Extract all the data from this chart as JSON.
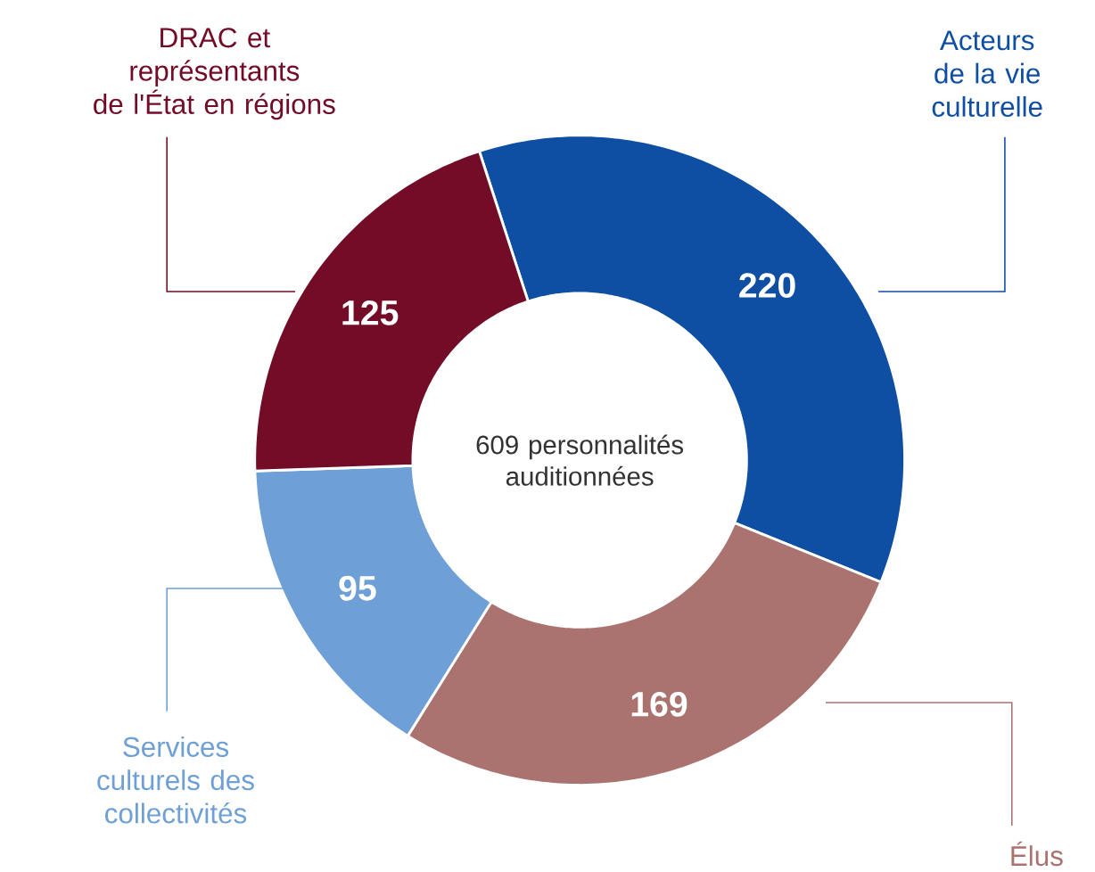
{
  "chart_data": {
    "type": "donut",
    "categories": [
      "Acteurs de la vie culturelle",
      "Élus",
      "Services culturels des collectivités",
      "DRAC et représentants de l'État en régions"
    ],
    "values": [
      220,
      169,
      95,
      125
    ],
    "colors": [
      "#0e4ea3",
      "#ab7370",
      "#6e9fd6",
      "#730d27"
    ],
    "data_labels": true,
    "annotations": [
      "609 personnalités auditionnées"
    ]
  }
}
